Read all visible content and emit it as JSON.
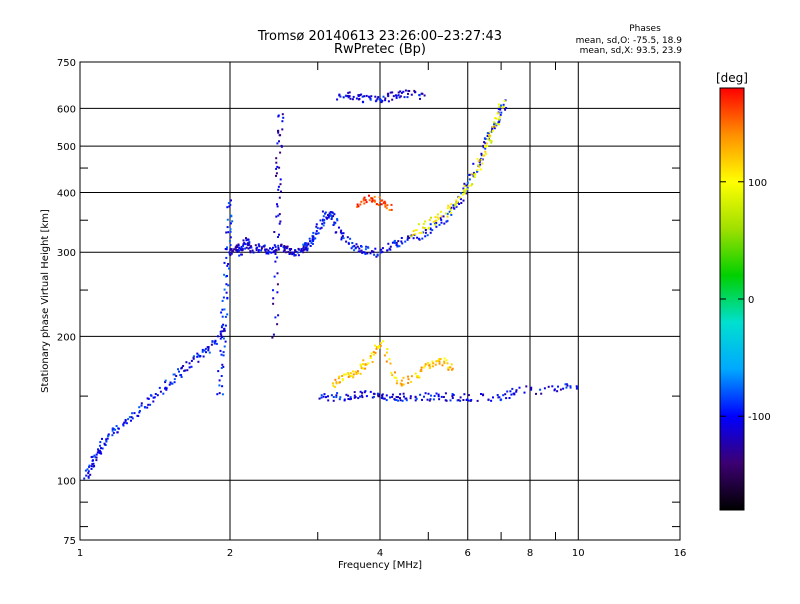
{
  "title": "Tromsø 20140613 23:26:00–23:27:43",
  "subtitle": "RwPretec (Bp)",
  "stats": {
    "heading": "Phases",
    "o_line": "mean, sd,O:  -75.5, 18.9",
    "x_line": "mean, sd,X:   93.5, 23.9"
  },
  "colorbar": {
    "unit_label": "[deg]",
    "ticks": [
      "100",
      "0",
      "-100"
    ],
    "tick_values": [
      100,
      0,
      -100
    ],
    "range": [
      -180,
      180
    ],
    "colormap": "rainbow",
    "stops": [
      "#000000",
      "#3c0072",
      "#0000ff",
      "#00a8ff",
      "#00e0d0",
      "#00d000",
      "#a0e000",
      "#ffff00",
      "#ff9000",
      "#ff0000"
    ]
  },
  "chart_data": {
    "type": "scatter",
    "title": "Tromsø 20140613 23:26:00–23:27:43",
    "subtitle": "RwPretec (Bp)",
    "xlabel": "Frequency [MHz]",
    "ylabel": "Stationary phase Virtual Height [km]",
    "x_scale": "log",
    "y_scale": "log",
    "xlim": [
      1,
      16
    ],
    "ylim": [
      75,
      750
    ],
    "x_ticks": [
      1,
      2,
      4,
      6,
      8,
      10,
      16
    ],
    "x_tick_labels": [
      "1",
      "2",
      "4",
      "6",
      "8",
      "10",
      "16"
    ],
    "y_ticks": [
      75,
      100,
      200,
      300,
      400,
      500,
      600,
      750
    ],
    "y_tick_labels": [
      "75",
      "100",
      "200",
      "300",
      "400",
      "500",
      "600",
      "750"
    ],
    "grid": true,
    "color_encodes": "phase [deg]",
    "traces": [
      {
        "x": [
          1.02,
          1.05,
          1.08,
          1.12,
          1.18,
          1.25,
          1.35,
          1.45,
          1.55,
          1.65,
          1.75,
          1.85,
          1.95
        ],
        "y": [
          102,
          108,
          115,
          122,
          128,
          135,
          145,
          155,
          165,
          175,
          185,
          195,
          210
        ],
        "phase": -100
      },
      {
        "x": [
          1.9,
          1.92,
          1.94,
          1.96,
          1.98,
          2.0
        ],
        "y": [
          150,
          190,
          230,
          280,
          330,
          390
        ],
        "phase": -95
      },
      {
        "x": [
          2.0,
          2.05,
          2.1,
          2.15,
          2.2,
          2.3,
          2.4,
          2.5,
          2.6,
          2.7,
          2.8
        ],
        "y": [
          300,
          310,
          300,
          320,
          305,
          310,
          300,
          310,
          305,
          300,
          310
        ],
        "phase": -110
      },
      {
        "x": [
          2.45,
          2.47,
          2.49,
          2.5,
          2.52
        ],
        "y": [
          200,
          300,
          400,
          500,
          600
        ],
        "phase": -115
      },
      {
        "x": [
          2.8,
          2.85,
          2.9,
          3.0,
          3.1,
          3.2,
          3.3,
          3.5,
          3.7,
          3.9,
          4.2,
          4.5,
          4.9,
          5.3,
          5.7,
          6.0,
          6.3,
          6.6,
          6.9,
          7.1
        ],
        "y": [
          310,
          310,
          320,
          340,
          360,
          360,
          330,
          310,
          305,
          300,
          310,
          320,
          330,
          350,
          380,
          420,
          470,
          530,
          580,
          620
        ],
        "phase": -100
      },
      {
        "x": [
          4.6,
          5.0,
          5.4,
          5.8,
          6.2,
          6.5,
          6.8,
          7.0
        ],
        "y": [
          330,
          345,
          365,
          395,
          440,
          500,
          560,
          620
        ],
        "phase": 95
      },
      {
        "x": [
          3.0,
          3.3,
          3.6,
          3.9,
          4.2,
          4.5,
          5.0,
          5.5,
          6.0,
          7.0,
          7.5,
          9.0,
          10.0
        ],
        "y": [
          150,
          150,
          152,
          152,
          150,
          150,
          150,
          150,
          150,
          150,
          155,
          155,
          160
        ],
        "phase": -105
      },
      {
        "x": [
          3.2,
          3.4,
          3.6,
          3.8,
          4.0,
          4.3,
          4.7,
          5.0,
          5.3,
          5.6
        ],
        "y": [
          160,
          165,
          170,
          180,
          195,
          160,
          165,
          175,
          180,
          170
        ],
        "phase": 120
      },
      {
        "x": [
          3.3,
          3.5,
          3.7,
          4.0,
          4.2,
          4.5,
          4.9
        ],
        "y": [
          640,
          640,
          630,
          630,
          640,
          650,
          640
        ],
        "phase": -110
      },
      {
        "x": [
          3.6,
          3.8,
          4.0,
          4.2
        ],
        "y": [
          380,
          390,
          385,
          375
        ],
        "phase": 160
      }
    ]
  }
}
